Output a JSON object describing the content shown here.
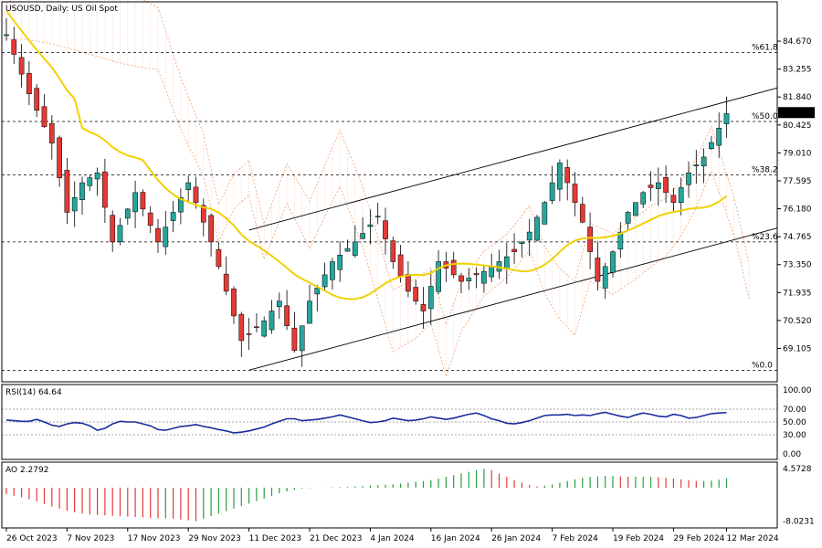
{
  "panels": {
    "price": {
      "header": "USOUSD, Daily:  US Oil Spot"
    },
    "rsi": {
      "header": "RSI(14) 64.64"
    },
    "ao": {
      "header": "AO 2.2792"
    }
  },
  "colors": {
    "bull": "#26a69a",
    "bear": "#e53935",
    "ma": "#f2d000",
    "cloud": "#f0a070",
    "rsi": "#1a2d9c",
    "ao_up": "#2a9d3a",
    "ao_down": "#e53935"
  },
  "chart_data": [
    {
      "type": "candlestick",
      "title": "USOUSD, Daily:  US Oil Spot",
      "ylim": [
        67.6,
        86.2
      ],
      "y_ticks": [
        "84.670",
        "83.255",
        "81.840",
        "80.425",
        "79.010",
        "77.595",
        "76.180",
        "74.765",
        "73.350",
        "71.935",
        "70.520",
        "69.105"
      ],
      "current_price": "81.051",
      "x_ticks": [
        "26 Oct 2023",
        "7 Nov 2023",
        "17 Nov 2023",
        "29 Nov 2023",
        "11 Dec 2023",
        "21 Dec 2023",
        "4 Jan 2024",
        "16 Jan 2024",
        "26 Jan 2024",
        "7 Feb 2024",
        "19 Feb 2024",
        "29 Feb 2024",
        "12 Mar 2024"
      ],
      "fib_levels": [
        {
          "label": "%61.8",
          "value": 84.1
        },
        {
          "label": "%50.0",
          "value": 80.6
        },
        {
          "label": "%38.2",
          "value": 77.9
        },
        {
          "label": "%23.6",
          "value": 74.5
        },
        {
          "label": "%0.0",
          "value": 68.0
        }
      ],
      "channel": [
        {
          "from": [
            0,
            68.0
          ],
          "to": [
            100,
            75.2
          ]
        },
        {
          "from": [
            0,
            75.1
          ],
          "to": [
            100,
            82.3
          ]
        }
      ]
    },
    {
      "type": "line",
      "title": "RSI(14) 64.64",
      "ylim": [
        0,
        100
      ],
      "y_ticks": [
        "100.00",
        "70.00",
        "50.00",
        "30.00",
        "0.00"
      ],
      "levels": [
        70,
        50,
        30
      ],
      "values": [
        53,
        52,
        51,
        51,
        54,
        50,
        45,
        43,
        47,
        49,
        48,
        44,
        37,
        40,
        47,
        51,
        50,
        50,
        47,
        44,
        38,
        37,
        40,
        43,
        44,
        46,
        43,
        41,
        38,
        36,
        33,
        34,
        36,
        39,
        42,
        47,
        51,
        55,
        55,
        52,
        53,
        54,
        56,
        58,
        61,
        58,
        55,
        52,
        49,
        50,
        52,
        56,
        54,
        52,
        53,
        55,
        58,
        56,
        54,
        56,
        59,
        62,
        64,
        60,
        55,
        52,
        48,
        47,
        49,
        52,
        56,
        60,
        61,
        61,
        62,
        60,
        61,
        60,
        63,
        65,
        62,
        59,
        57,
        61,
        64,
        62,
        59,
        58,
        62,
        60,
        56,
        57,
        60,
        63,
        64,
        64.64
      ]
    },
    {
      "type": "bar",
      "title": "AO 2.2792",
      "ylim": [
        -8.3,
        4.8
      ],
      "y_ticks": [
        "4.5728",
        "-8.0231"
      ],
      "values": [
        -1.5,
        -1.9,
        -2.3,
        -2.8,
        -3.3,
        -3.9,
        -4.5,
        -5.0,
        -5.5,
        -5.9,
        -6.2,
        -6.4,
        -6.5,
        -6.6,
        -6.7,
        -6.8,
        -6.9,
        -7.0,
        -7.1,
        -7.2,
        -7.3,
        -7.3,
        -7.4,
        -7.6,
        -7.8,
        -8.0,
        -7.4,
        -6.8,
        -6.2,
        -5.6,
        -5.0,
        -4.4,
        -3.8,
        -3.2,
        -2.6,
        -2.0,
        -1.4,
        -0.9,
        -0.5,
        -0.2,
        -0.1,
        0.0,
        0.05,
        0.1,
        0.15,
        0.2,
        0.3,
        0.4,
        0.5,
        0.6,
        0.7,
        0.8,
        1.0,
        1.2,
        1.4,
        1.6,
        1.8,
        2.2,
        2.6,
        3.0,
        3.4,
        3.8,
        4.2,
        4.5,
        4.2,
        3.4,
        2.6,
        1.8,
        1.2,
        0.6,
        0.3,
        0.5,
        0.8,
        1.2,
        1.6,
        2.0,
        2.4,
        2.6,
        2.7,
        2.8,
        2.8,
        2.7,
        2.6,
        2.6,
        2.6,
        2.6,
        2.5,
        2.4,
        2.2,
        2.0,
        1.8,
        1.6,
        1.6,
        1.7,
        1.9,
        2.2793
      ]
    }
  ]
}
